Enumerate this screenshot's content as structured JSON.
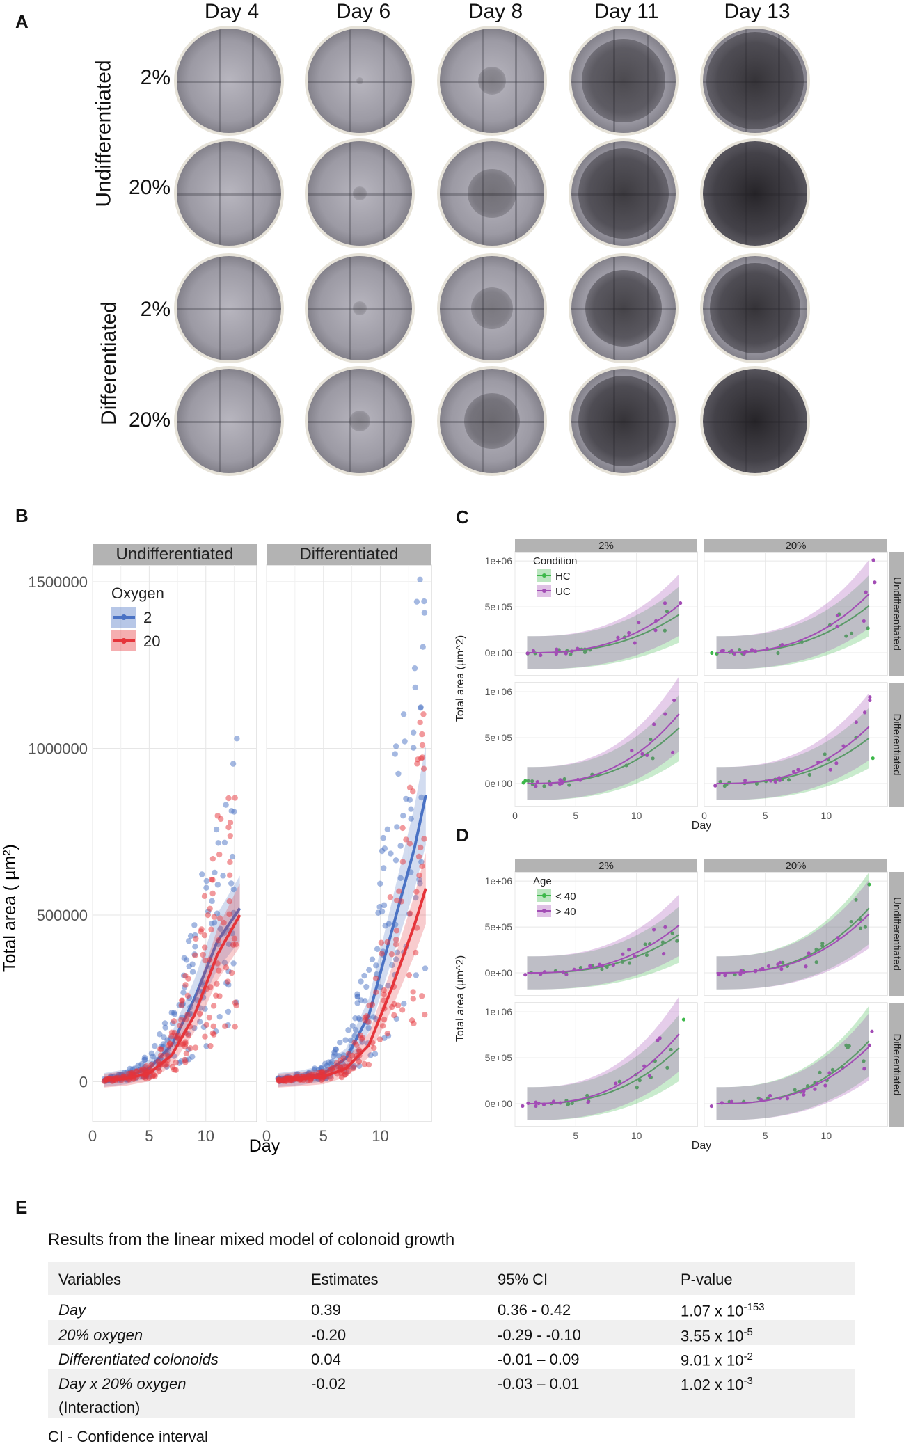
{
  "panel_a": {
    "letter": "A",
    "days": [
      "Day 4",
      "Day 6",
      "Day 8",
      "Day 11",
      "Day 13"
    ],
    "groups": [
      "Undifferentiated",
      "Differentiated"
    ],
    "oxygen_rows": [
      "2%",
      "20%",
      "2%",
      "20%"
    ]
  },
  "panel_b": {
    "letter": "B",
    "facets": [
      "Undifferentiated",
      "Differentiated"
    ],
    "ylabel": "Total area ( µm²)",
    "xlabel": "Day",
    "legend_title": "Oxygen",
    "legend_items": [
      "2",
      "20"
    ]
  },
  "panel_c": {
    "letter": "C",
    "col_facets": [
      "2%",
      "20%"
    ],
    "row_facets": [
      "Undifferentiated",
      "Differentiated"
    ],
    "ylabel": "Total area (µm^2)",
    "xlabel": "Day",
    "legend_title": "Condition",
    "legend_items": [
      "HC",
      "UC"
    ]
  },
  "panel_d": {
    "letter": "D",
    "col_facets": [
      "2%",
      "20%"
    ],
    "row_facets": [
      "Undifferentiated",
      "Differentiated"
    ],
    "ylabel": "Total area (µm^2)",
    "xlabel": "Day",
    "legend_title": "Age",
    "legend_items": [
      "< 40",
      "> 40"
    ]
  },
  "panel_e": {
    "letter": "E",
    "title": "Results from the linear mixed model of colonoid growth",
    "headers": [
      "Variables",
      "Estimates",
      "95% CI",
      "P-value"
    ],
    "rows": [
      {
        "variable": "Day",
        "extra": "",
        "estimate": "0.39",
        "ci": "0.36 - 0.42",
        "p_base": "1.07 x 10",
        "p_exp": "-153"
      },
      {
        "variable": "20% oxygen",
        "extra": "",
        "estimate": "-0.20",
        "ci": "-0.29 - -0.10",
        "p_base": "3.55 x 10",
        "p_exp": "-5"
      },
      {
        "variable": "Differentiated colonoids",
        "extra": "",
        "estimate": "0.04",
        "ci": "-0.01 – 0.09",
        "p_base": "9.01 x 10",
        "p_exp": "-2"
      },
      {
        "variable": "Day x 20% oxygen",
        "extra": "(Interaction)",
        "estimate": "-0.02",
        "ci": "-0.03 – 0.01",
        "p_base": "1.02 x 10",
        "p_exp": "-3"
      }
    ],
    "footnote": "CI - Confidence interval"
  },
  "colors": {
    "blue": "#4a72c4",
    "red": "#e5343a",
    "green": "#3db84a",
    "purple": "#a24cb5",
    "strip": "#b3b3b3",
    "table_band": "#f0f0f0"
  },
  "chart_data": [
    {
      "type": "scatter",
      "id": "B",
      "title": "",
      "facets": [
        "Undifferentiated",
        "Differentiated"
      ],
      "xlabel": "Day",
      "ylabel": "Total area ( µm²)",
      "xlim": [
        0,
        14.5
      ],
      "ylim": [
        -120000,
        1550000
      ],
      "xticks": [
        0,
        5,
        10
      ],
      "yticks": [
        0,
        500000,
        1000000,
        1500000
      ],
      "ytick_labels": [
        "0",
        "500000",
        "1000000",
        "1500000"
      ],
      "legend_title": "Oxygen",
      "series": [
        {
          "name": "2",
          "facet": "Undifferentiated",
          "fit": [
            [
              1,
              5000
            ],
            [
              3,
              15000
            ],
            [
              5,
              40000
            ],
            [
              7,
              110000
            ],
            [
              9,
              250000
            ],
            [
              11,
              420000
            ],
            [
              13,
              520000
            ]
          ]
        },
        {
          "name": "20",
          "facet": "Undifferentiated",
          "fit": [
            [
              1,
              3000
            ],
            [
              3,
              10000
            ],
            [
              5,
              25000
            ],
            [
              7,
              80000
            ],
            [
              9,
              200000
            ],
            [
              11,
              380000
            ],
            [
              13,
              500000
            ]
          ]
        },
        {
          "name": "2",
          "facet": "Differentiated",
          "fit": [
            [
              1,
              5000
            ],
            [
              3,
              12000
            ],
            [
              5,
              25000
            ],
            [
              7,
              70000
            ],
            [
              9,
              200000
            ],
            [
              11,
              450000
            ],
            [
              13,
              700000
            ],
            [
              14,
              860000
            ]
          ]
        },
        {
          "name": "20",
          "facet": "Differentiated",
          "fit": [
            [
              1,
              3000
            ],
            [
              3,
              8000
            ],
            [
              5,
              15000
            ],
            [
              7,
              40000
            ],
            [
              9,
              110000
            ],
            [
              11,
              280000
            ],
            [
              13,
              470000
            ],
            [
              14,
              580000
            ]
          ]
        }
      ]
    },
    {
      "type": "line",
      "id": "C",
      "col_facets": [
        "2%",
        "20%"
      ],
      "row_facets": [
        "Undifferentiated",
        "Differentiated"
      ],
      "xlabel": "Day",
      "ylabel": "Total area (µm^2)",
      "xlim": [
        0,
        15
      ],
      "ylim": [
        -250000,
        1100000
      ],
      "xticks": [
        0,
        5,
        10
      ],
      "ytick_labels": [
        "0e+00",
        "5e+05",
        "1e+06"
      ],
      "legend_title": "Condition",
      "series_names": [
        "HC",
        "UC"
      ]
    },
    {
      "type": "line",
      "id": "D",
      "col_facets": [
        "2%",
        "20%"
      ],
      "row_facets": [
        "Undifferentiated",
        "Differentiated"
      ],
      "xlabel": "Day",
      "ylabel": "Total area (µm^2)",
      "xlim": [
        0,
        15
      ],
      "ylim": [
        -250000,
        1100000
      ],
      "xticks": [
        5,
        10
      ],
      "ytick_labels": [
        "0e+00",
        "5e+05",
        "1e+06"
      ],
      "legend_title": "Age",
      "series_names": [
        "< 40",
        "> 40"
      ]
    }
  ]
}
